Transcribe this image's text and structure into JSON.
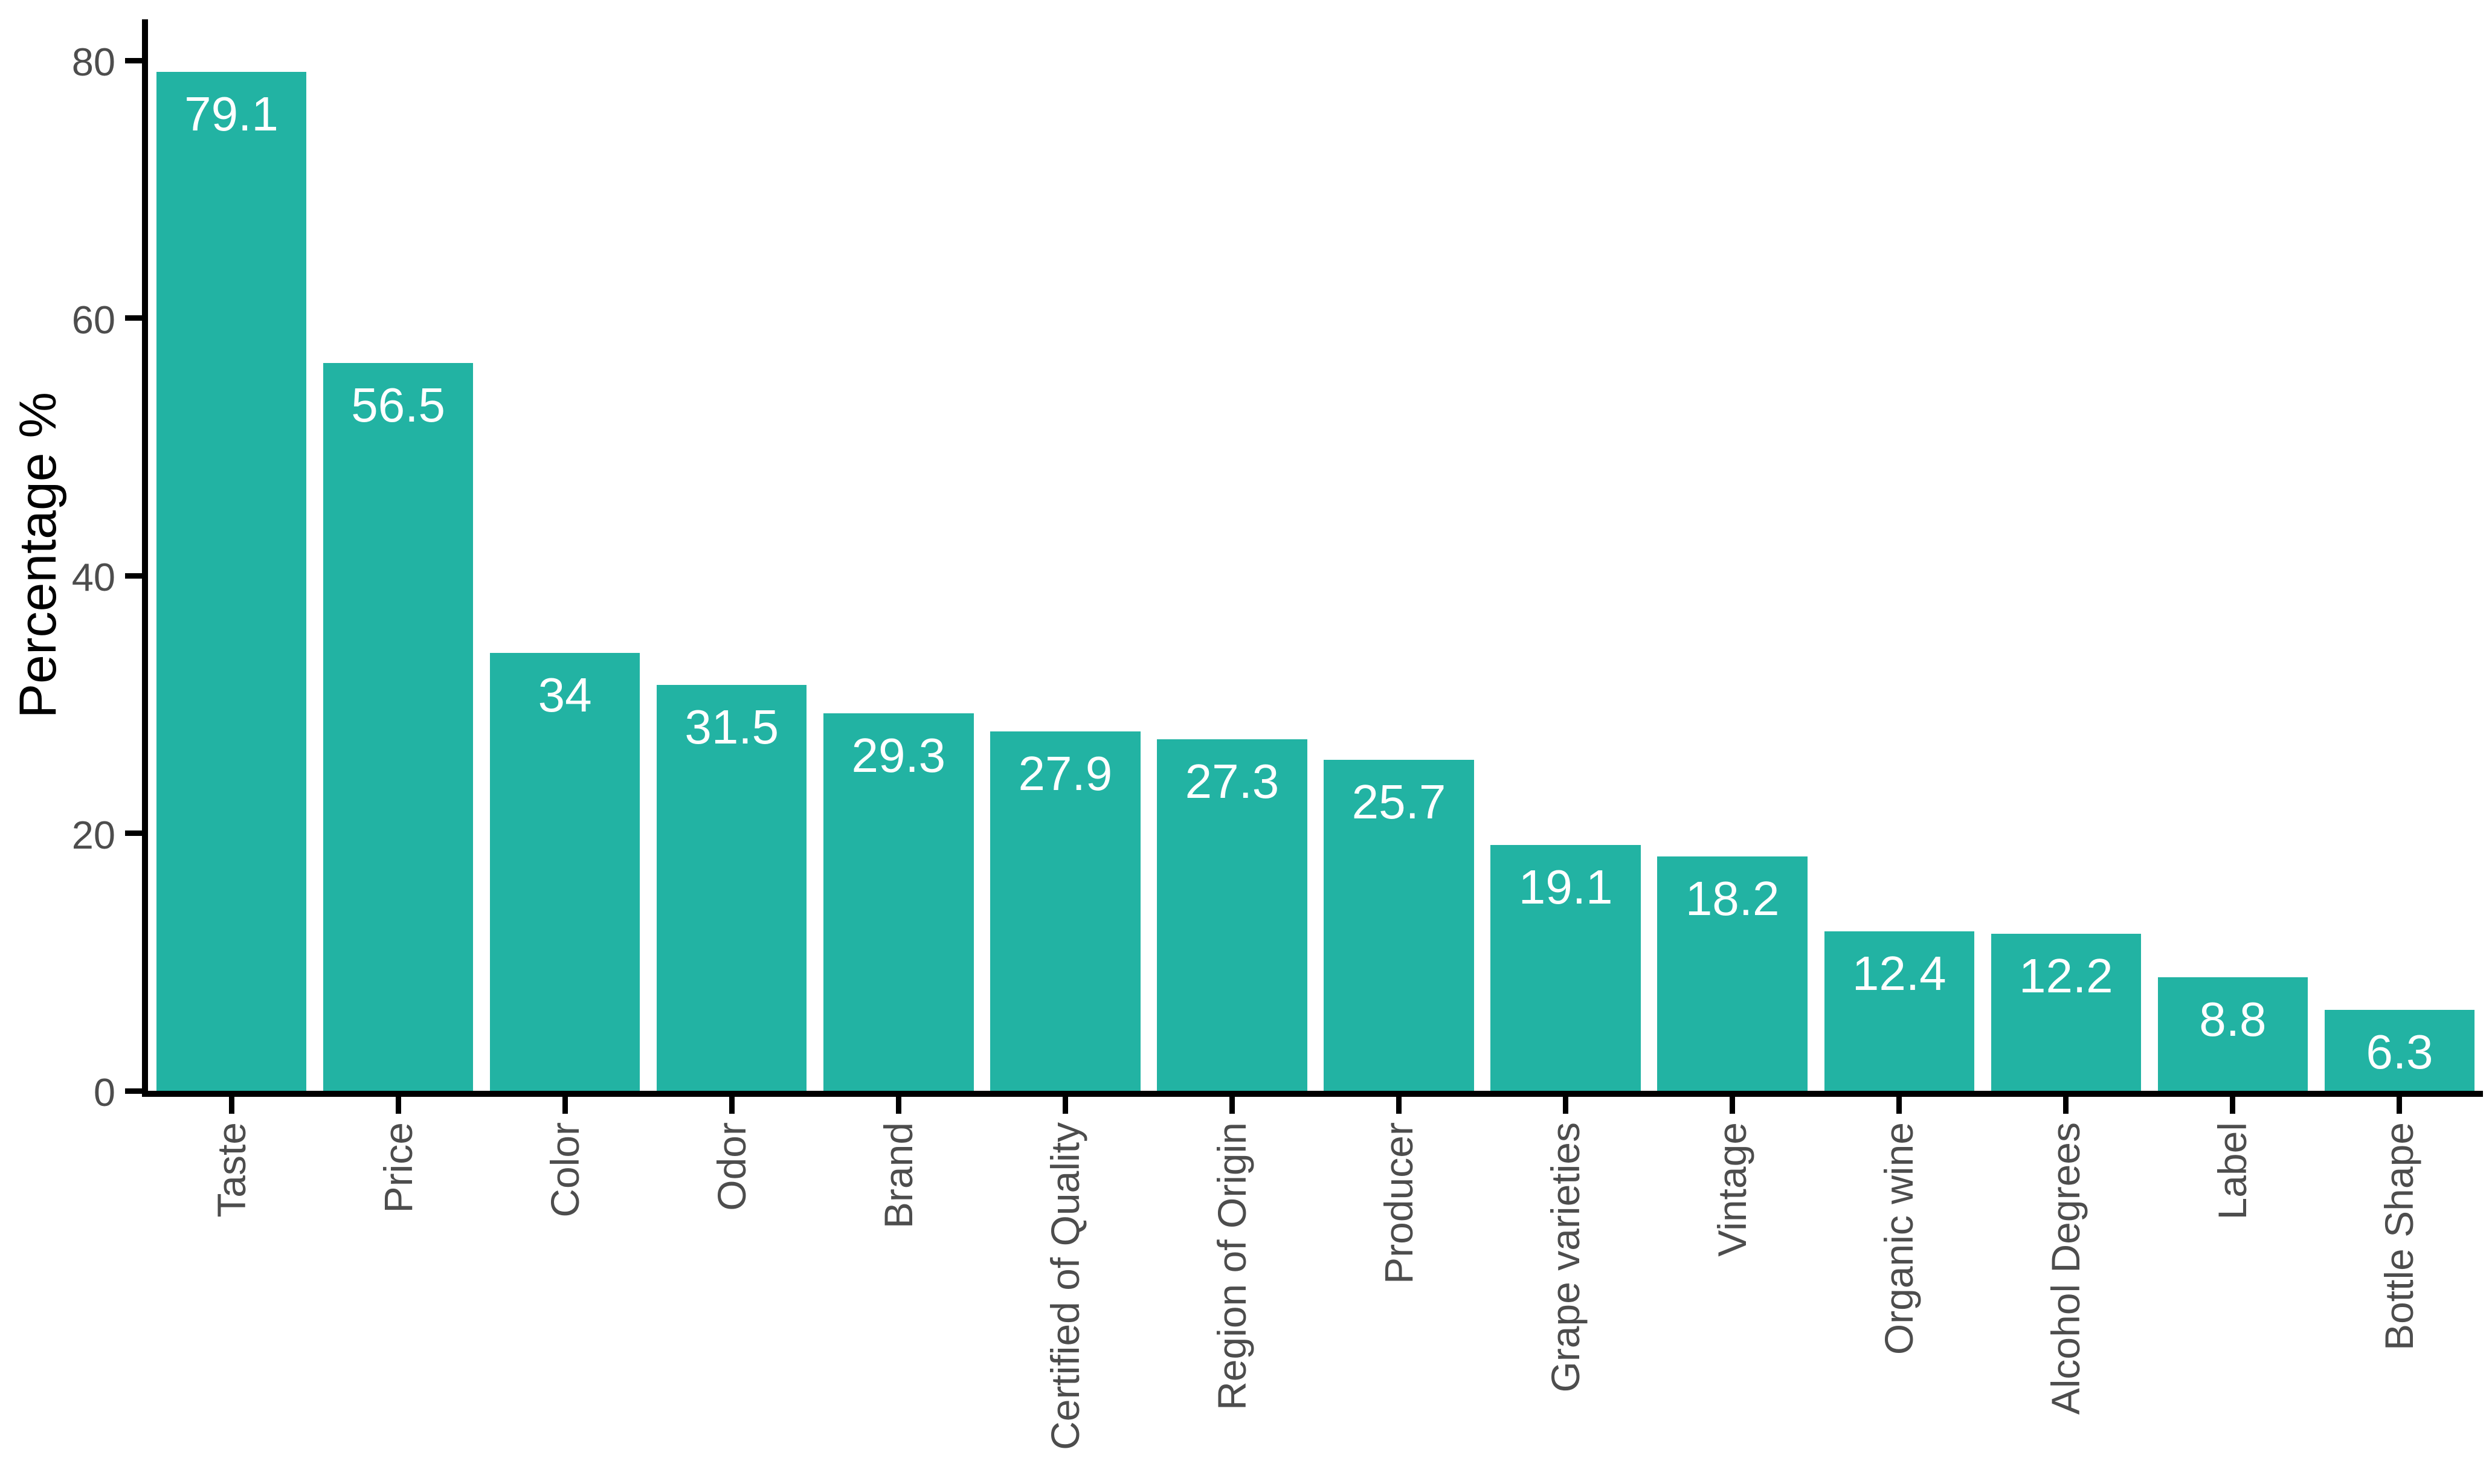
{
  "chart_data": {
    "type": "bar",
    "title": "",
    "xlabel": "",
    "ylabel": "Percentage %",
    "categories": [
      "Taste",
      "Price",
      "Color",
      "Odor",
      "Brand",
      "Certified of Quality",
      "Region of Origin",
      "Producer",
      "Grape varieties",
      "Vintage",
      "Organic wine",
      "Alcohol Degrees",
      "Label",
      "Bottle Shape"
    ],
    "values": [
      79.1,
      56.5,
      34,
      31.5,
      29.3,
      27.9,
      27.3,
      25.7,
      19.1,
      18.2,
      12.4,
      12.2,
      8.8,
      6.3
    ],
    "value_labels": [
      "79.1",
      "56.5",
      "34",
      "31.5",
      "29.3",
      "27.9",
      "27.3",
      "25.7",
      "19.1",
      "18.2",
      "12.4",
      "12.2",
      "8.8",
      "6.3"
    ],
    "ylim": [
      0,
      83
    ],
    "yticks": [
      0,
      20,
      40,
      60,
      80
    ],
    "grid": false,
    "legend_position": "none",
    "colors": {
      "bar": "#22b3a3",
      "value_label": "#ffffff",
      "axis_line": "#000000",
      "axis_text": "#4d4d4d",
      "axis_title": "#000000",
      "background": "#ffffff"
    }
  }
}
